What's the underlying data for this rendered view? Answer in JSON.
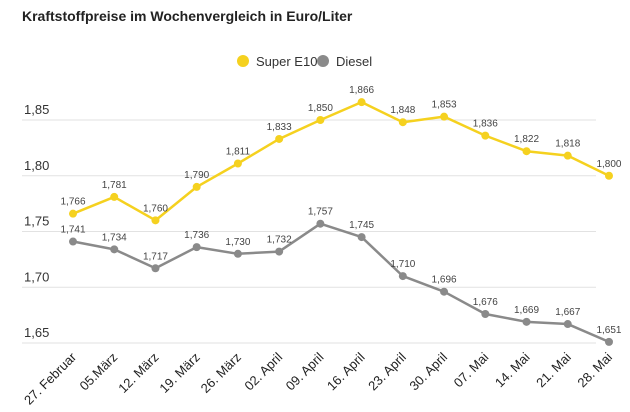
{
  "chart_data": {
    "type": "line",
    "title": "Kraftstoffpreise im Wochenvergleich in Euro/Liter",
    "categories": [
      "27. Februar",
      "05.März",
      "12. März",
      "19. März",
      "26. März",
      "02. April",
      "09. April",
      "16. April",
      "23. April",
      "30. April",
      "07. Mai",
      "14. Mai",
      "21. Mai",
      "28. Mai"
    ],
    "series": [
      {
        "name": "Super E10",
        "color": "#f5d11f",
        "values": [
          1.766,
          1.781,
          1.76,
          1.79,
          1.811,
          1.833,
          1.85,
          1.866,
          1.848,
          1.853,
          1.836,
          1.822,
          1.818,
          1.8
        ],
        "labels": [
          "1,766",
          "1,781",
          "1,760",
          "1,790",
          "1,811",
          "1,833",
          "1,850",
          "1,866",
          "1,848",
          "1,853",
          "1,836",
          "1,822",
          "1,818",
          "1,800"
        ]
      },
      {
        "name": "Diesel",
        "color": "#8a8a8a",
        "values": [
          1.741,
          1.734,
          1.717,
          1.736,
          1.73,
          1.732,
          1.757,
          1.745,
          1.71,
          1.696,
          1.676,
          1.669,
          1.667,
          1.651
        ],
        "labels": [
          "1,741",
          "1,734",
          "1,717",
          "1,736",
          "1,730",
          "1,732",
          "1,757",
          "1,745",
          "1,710",
          "1,696",
          "1,676",
          "1,669",
          "1,667",
          "1,651"
        ]
      }
    ],
    "yticks": [
      1.65,
      1.7,
      1.75,
      1.8,
      1.85
    ],
    "ytick_labels": [
      "1,65",
      "1,70",
      "1,75",
      "1,80",
      "1,85"
    ],
    "ylim": [
      1.65,
      1.85
    ],
    "grid": true,
    "legend_position": "top-center"
  }
}
